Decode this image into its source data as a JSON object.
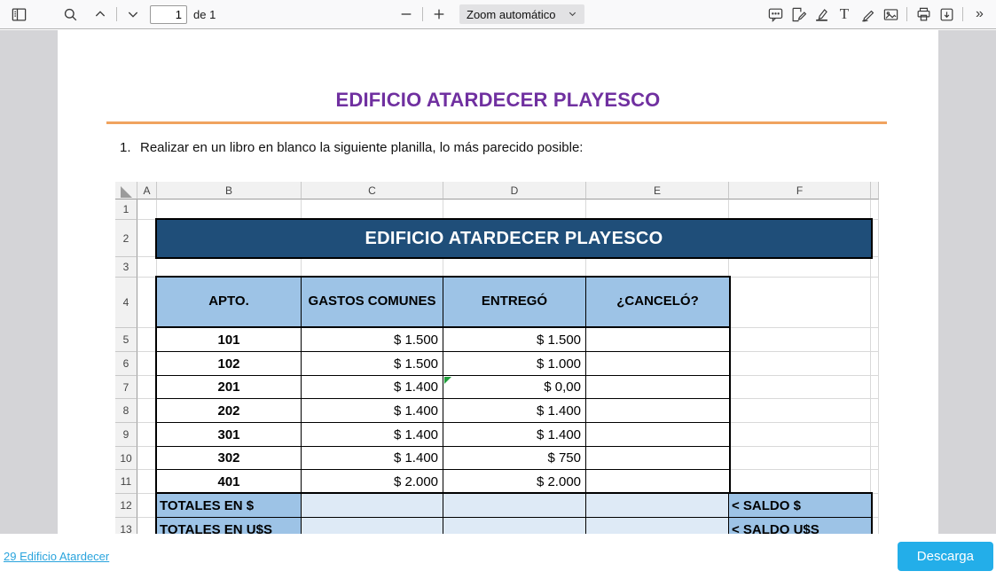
{
  "toolbar": {
    "page_value": "1",
    "page_count_label": "de 1",
    "zoom_label": "Zoom automático",
    "icons": [
      "sidebar-toggle",
      "search",
      "previous-page",
      "next-page",
      "zoom-out",
      "zoom-in",
      "comment",
      "signature",
      "highlight",
      "text",
      "draw",
      "image",
      "print",
      "save",
      "more-tools"
    ]
  },
  "doc": {
    "title": "EDIFICIO ATARDECER PLAYESCO",
    "title_color": "#7030A0",
    "rule_color": "#F0A35F",
    "instruction_number": "1.",
    "instruction_text": "Realizar en un libro en blanco la siguiente planilla, lo más parecido posible:"
  },
  "sheet": {
    "columns": [
      "A",
      "B",
      "C",
      "D",
      "E",
      "F"
    ],
    "rows": [
      "1",
      "2",
      "3",
      "4",
      "5",
      "6",
      "7",
      "8",
      "9",
      "10",
      "11",
      "12",
      "13"
    ],
    "banner_text": "EDIFICIO ATARDECER PLAYESCO",
    "header_cells": [
      "APTO.",
      "GASTOS COMUNES",
      "ENTREGÓ",
      "¿CANCELÓ?"
    ],
    "data_rows": [
      {
        "apto": "101",
        "gastos": "$ 1.500",
        "entrego": "$ 1.500",
        "cancelo": ""
      },
      {
        "apto": "102",
        "gastos": "$ 1.500",
        "entrego": "$ 1.000",
        "cancelo": ""
      },
      {
        "apto": "201",
        "gastos": "$ 1.400",
        "entrego": "$ 0,00",
        "cancelo": "",
        "error_marker": true
      },
      {
        "apto": "202",
        "gastos": "$ 1.400",
        "entrego": "$ 1.400",
        "cancelo": ""
      },
      {
        "apto": "301",
        "gastos": "$ 1.400",
        "entrego": "$ 1.400",
        "cancelo": ""
      },
      {
        "apto": "302",
        "gastos": "$ 1.400",
        "entrego": "$ 750",
        "cancelo": ""
      },
      {
        "apto": "401",
        "gastos": "$ 2.000",
        "entrego": "$ 2.000",
        "cancelo": ""
      }
    ],
    "totals_rows": [
      {
        "label": "TOTALES EN $",
        "saldo": "< SALDO $"
      },
      {
        "label": "TOTALES EN U$S",
        "saldo": "< SALDO U$S"
      }
    ],
    "colors": {
      "banner_bg": "#1F4E79",
      "header_bg": "#9DC3E6",
      "totals_label_bg": "#9DC3E6",
      "totals_cell_bg": "#DEEAF6",
      "error_marker": "#1F9D3A"
    }
  },
  "footer": {
    "link_label": "29 Edificio Atardecer",
    "button_label": "Descarga",
    "button_color": "#23AEE9"
  }
}
